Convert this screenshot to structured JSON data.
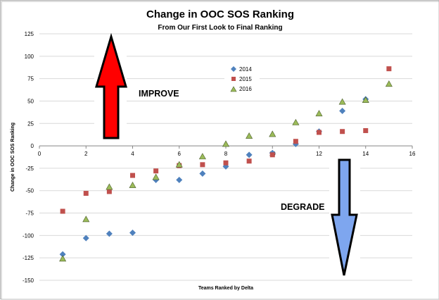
{
  "chart_data": {
    "type": "scatter",
    "title": "Change in OOC SOS Ranking",
    "subtitle": "From Our First Look to Final Ranking",
    "xlabel": "Teams Ranked by Delta",
    "ylabel": "Change in OOC SOS Ranking",
    "xlim": [
      0,
      16
    ],
    "ylim": [
      -150,
      125
    ],
    "x_ticks": [
      0,
      2,
      4,
      6,
      8,
      10,
      12,
      14,
      16
    ],
    "y_ticks": [
      125,
      100,
      75,
      50,
      25,
      0,
      -25,
      -50,
      -75,
      -100,
      -125,
      -150
    ],
    "grid": "horizontal",
    "legend_position": "top-center",
    "annotations": {
      "improve": "IMPROVE",
      "degrade": "DEGRADE"
    },
    "series": [
      {
        "name": "2014",
        "color": "#4f81bd",
        "marker": "diamond",
        "x": [
          1,
          2,
          3,
          4,
          5,
          6,
          7,
          8,
          9,
          10,
          11,
          12,
          13,
          14
        ],
        "y": [
          -121,
          -103,
          -98,
          -97,
          -38,
          -38,
          -31,
          -23,
          -10,
          -8,
          2,
          16,
          39,
          52
        ]
      },
      {
        "name": "2015",
        "color": "#c0504d",
        "marker": "square",
        "x": [
          1,
          2,
          3,
          4,
          5,
          6,
          7,
          8,
          9,
          10,
          11,
          12,
          13,
          14,
          15
        ],
        "y": [
          -73,
          -53,
          -51,
          -33,
          -28,
          -22,
          -21,
          -19,
          -17,
          -10,
          5,
          15,
          16,
          17,
          86
        ]
      },
      {
        "name": "2016",
        "color": "#9bbb59",
        "marker": "triangle",
        "x": [
          1,
          2,
          3,
          4,
          5,
          6,
          7,
          8,
          9,
          10,
          11,
          12,
          13,
          14,
          15
        ],
        "y": [
          -126,
          -82,
          -46,
          -44,
          -35,
          -21,
          -12,
          2,
          11,
          13,
          26,
          36,
          49,
          51,
          69
        ]
      }
    ]
  }
}
